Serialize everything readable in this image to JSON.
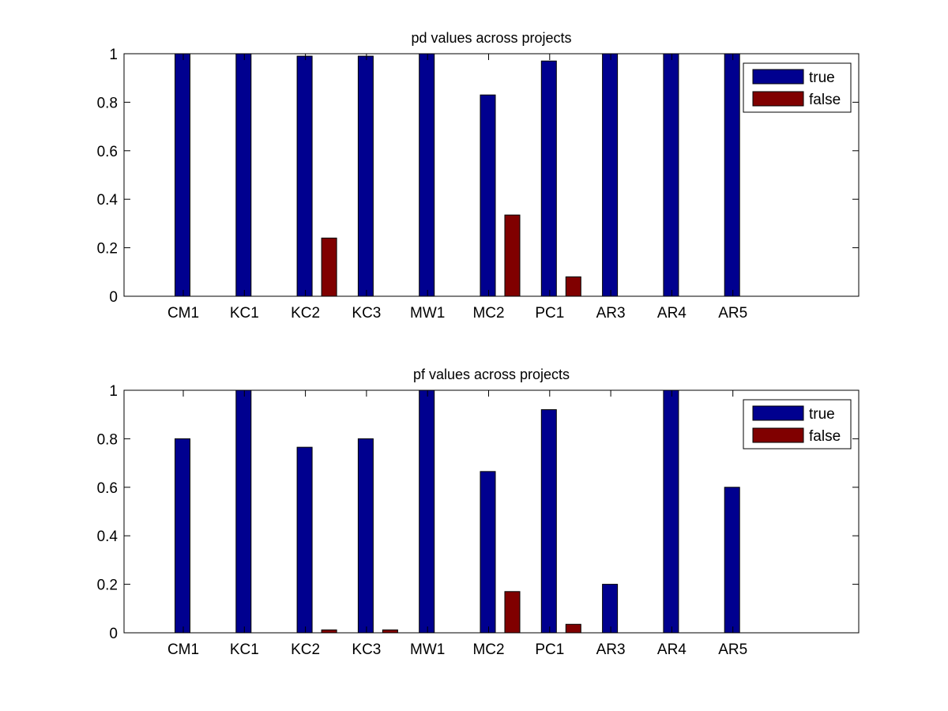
{
  "chart_data": [
    {
      "type": "bar",
      "title": "pd values across projects",
      "xlabel": "",
      "ylabel": "",
      "categories": [
        "CM1",
        "KC1",
        "KC2",
        "KC3",
        "MW1",
        "MC2",
        "PC1",
        "AR3",
        "AR4",
        "AR5"
      ],
      "series": [
        {
          "name": "true",
          "color": "#00008f",
          "values": [
            1,
            1,
            0.99,
            0.99,
            1,
            0.83,
            0.97,
            1,
            1,
            1
          ]
        },
        {
          "name": "false",
          "color": "#800000",
          "values": [
            0,
            0,
            0.24,
            0,
            0,
            0.335,
            0.08,
            0,
            0,
            0
          ]
        }
      ],
      "ylim": [
        0,
        1
      ],
      "yticks": [
        "0",
        "0.2",
        "0.4",
        "0.6",
        "0.8",
        "1"
      ],
      "grid": false,
      "legend_position": "top-right"
    },
    {
      "type": "bar",
      "title": "pf values across projects",
      "xlabel": "",
      "ylabel": "",
      "categories": [
        "CM1",
        "KC1",
        "KC2",
        "KC3",
        "MW1",
        "MC2",
        "PC1",
        "AR3",
        "AR4",
        "AR5"
      ],
      "series": [
        {
          "name": "true",
          "color": "#00008f",
          "values": [
            0.8,
            1,
            0.765,
            0.8,
            1,
            0.665,
            0.92,
            0.2,
            1,
            0.6
          ]
        },
        {
          "name": "false",
          "color": "#800000",
          "values": [
            0,
            0,
            0.012,
            0.012,
            0,
            0.17,
            0.035,
            0,
            0,
            0
          ]
        }
      ],
      "ylim": [
        0,
        1
      ],
      "yticks": [
        "0",
        "0.2",
        "0.4",
        "0.6",
        "0.8",
        "1"
      ],
      "grid": false,
      "legend_position": "top-right"
    }
  ]
}
